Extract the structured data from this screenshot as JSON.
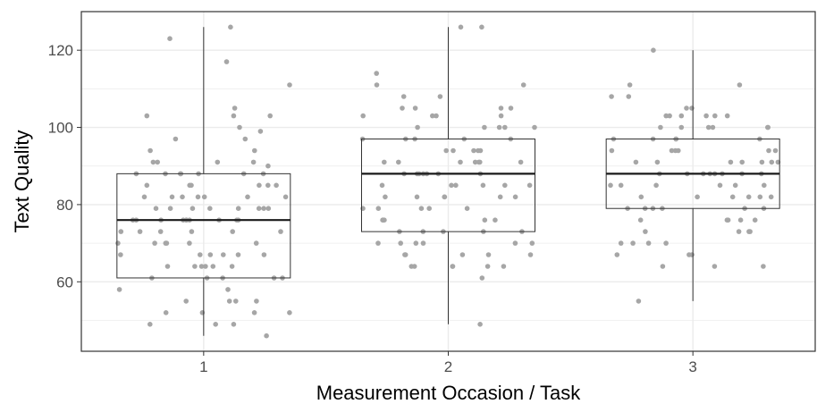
{
  "chart_data": {
    "type": "boxplot",
    "xlabel": "Measurement Occasion / Task",
    "ylabel": "Text Quality",
    "ylim": [
      42,
      130
    ],
    "yticks": [
      60,
      80,
      100,
      120
    ],
    "grid": true,
    "categories": [
      "1",
      "2",
      "3"
    ],
    "boxes": [
      {
        "category": "1",
        "whisker_low": 46,
        "q1": 61,
        "median": 76,
        "q3": 88,
        "whisker_high": 126
      },
      {
        "category": "2",
        "whisker_low": 49,
        "q1": 73,
        "median": 88,
        "q3": 97,
        "whisker_high": 126
      },
      {
        "category": "3",
        "whisker_low": 55,
        "q1": 79,
        "median": 88,
        "q3": 97,
        "whisker_high": 120
      }
    ],
    "points": [
      {
        "category": "1",
        "values": [
          126,
          123,
          117,
          111,
          105,
          103,
          103,
          103,
          100,
          99,
          97,
          97,
          94,
          94,
          91,
          91,
          91,
          91,
          90,
          88,
          88,
          88,
          88,
          88,
          88,
          88,
          85,
          85,
          85,
          85,
          85,
          85,
          82,
          82,
          82,
          82,
          82,
          82,
          82,
          79,
          79,
          79,
          79,
          79,
          79,
          79,
          79,
          76,
          76,
          76,
          76,
          76,
          76,
          76,
          76,
          76,
          76,
          73,
          73,
          73,
          73,
          73,
          73,
          70,
          70,
          70,
          70,
          70,
          70,
          67,
          67,
          67,
          67,
          67,
          67,
          64,
          64,
          64,
          64,
          64,
          64,
          61,
          61,
          61,
          61,
          61,
          58,
          58,
          55,
          55,
          55,
          55,
          52,
          52,
          52,
          52,
          49,
          49,
          49,
          46
        ]
      },
      {
        "category": "2",
        "values": [
          126,
          126,
          114,
          111,
          111,
          108,
          108,
          105,
          105,
          105,
          105,
          103,
          103,
          103,
          103,
          100,
          100,
          100,
          100,
          100,
          97,
          97,
          97,
          97,
          97,
          94,
          94,
          94,
          94,
          94,
          91,
          91,
          91,
          91,
          91,
          91,
          91,
          88,
          88,
          88,
          88,
          88,
          88,
          88,
          85,
          85,
          85,
          85,
          85,
          85,
          82,
          82,
          82,
          82,
          82,
          82,
          79,
          79,
          79,
          79,
          79,
          76,
          76,
          76,
          76,
          76,
          73,
          73,
          73,
          73,
          73,
          70,
          70,
          70,
          70,
          70,
          70,
          67,
          67,
          67,
          67,
          67,
          64,
          64,
          64,
          64,
          64,
          64,
          61,
          49
        ]
      },
      {
        "category": "3",
        "values": [
          120,
          111,
          111,
          108,
          108,
          105,
          105,
          103,
          103,
          103,
          103,
          103,
          103,
          100,
          100,
          100,
          100,
          100,
          100,
          97,
          97,
          97,
          97,
          97,
          94,
          94,
          94,
          94,
          94,
          94,
          91,
          91,
          91,
          91,
          91,
          91,
          91,
          88,
          88,
          88,
          88,
          88,
          88,
          88,
          88,
          85,
          85,
          85,
          85,
          85,
          85,
          82,
          82,
          82,
          82,
          82,
          82,
          79,
          79,
          79,
          79,
          79,
          79,
          76,
          76,
          76,
          76,
          76,
          73,
          73,
          73,
          73,
          70,
          70,
          70,
          70,
          67,
          67,
          67,
          64,
          64,
          64,
          55
        ]
      }
    ]
  }
}
